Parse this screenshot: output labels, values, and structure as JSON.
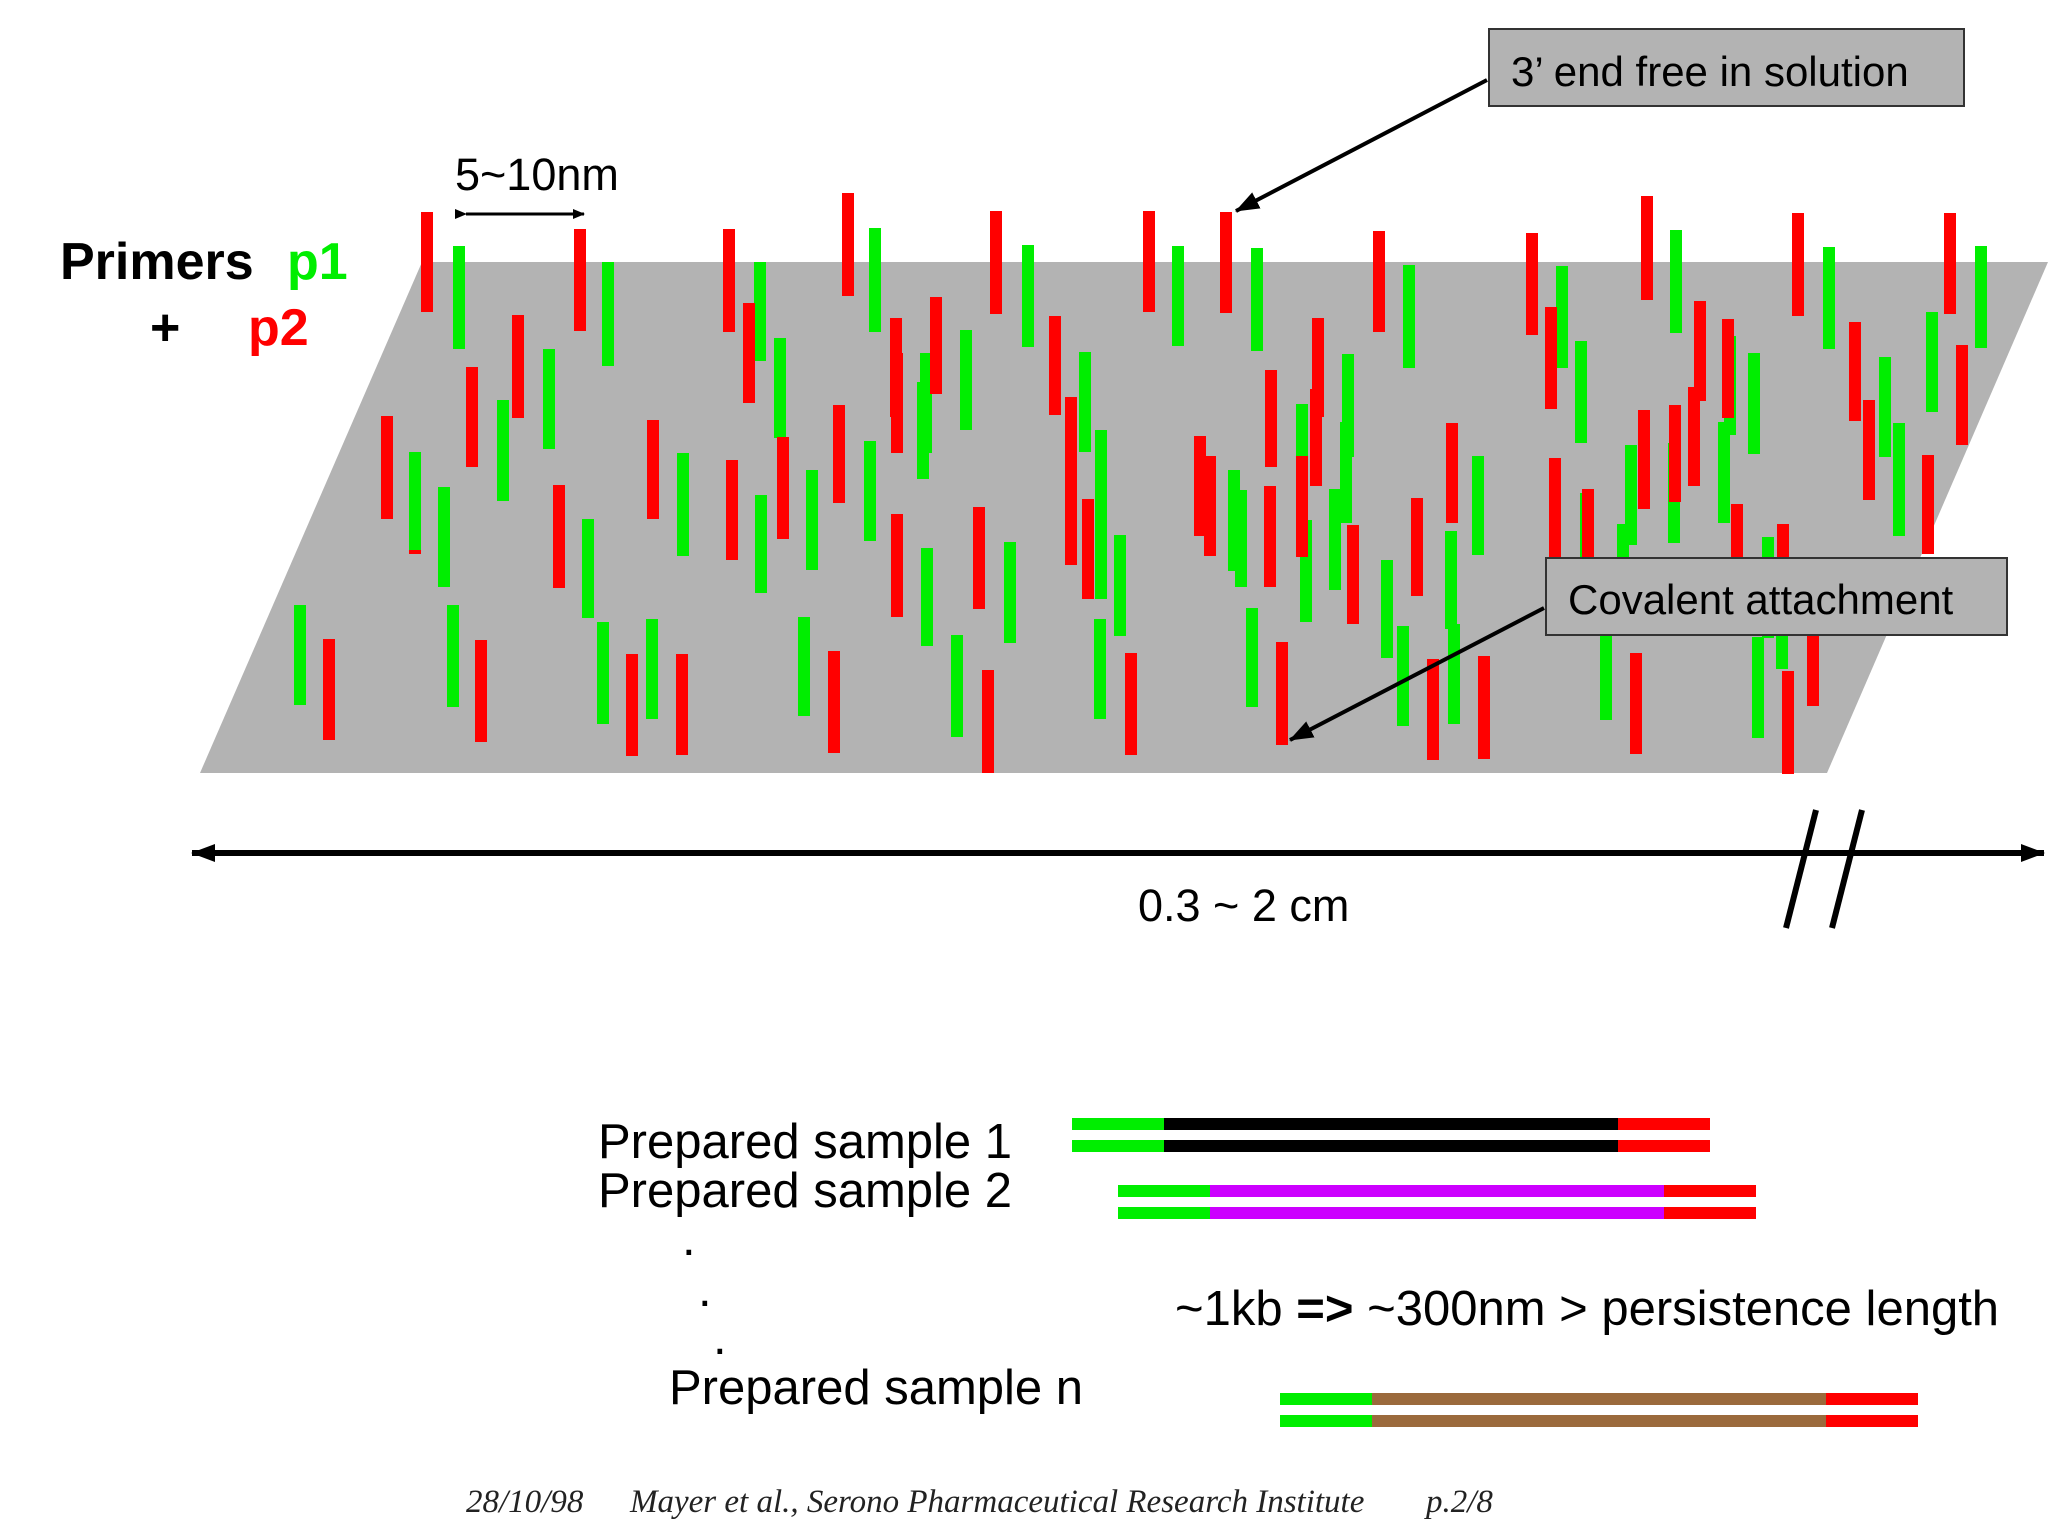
{
  "primers": {
    "label": "Primers",
    "p1": "p1",
    "plus": "+",
    "p2": "p2",
    "p1_color": "#00ee00",
    "p2_color": "#ff0000"
  },
  "surface_color": "#b3b3b3",
  "spacing_label": "5~10nm",
  "callouts": {
    "three_prime": "3’ end free in solution",
    "covalent": "Covalent attachment"
  },
  "scale": {
    "label": "0.3 ~ 2 cm"
  },
  "samples": [
    {
      "label": "Prepared sample 1",
      "insert_color": "#000000"
    },
    {
      "label": "Prepared  sample 2",
      "insert_color": "#cc00ff"
    },
    {
      "label": "Prepared sample n",
      "insert_color": "#9b6a3c"
    }
  ],
  "ellipsis": ".",
  "length_note": {
    "pre": "~1kb ",
    "arrow": "=>",
    "post": " ~300nm > persistence length"
  },
  "footer": {
    "date": "28/10/98",
    "credit": "Mayer et al., Serono Pharmaceutical Research Institute",
    "page": "p.2/8"
  }
}
